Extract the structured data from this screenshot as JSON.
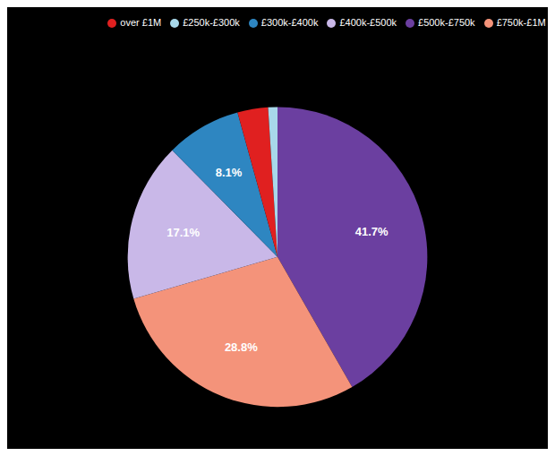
{
  "chart_data": {
    "type": "pie",
    "categories": [
      "£500k-£750k",
      "£750k-£1M",
      "£400k-£500k",
      "£300k-£400k",
      "over £1M",
      "£250k-£300k"
    ],
    "values": [
      41.7,
      28.8,
      17.1,
      8.1,
      3.3,
      1.0
    ],
    "value_labels": [
      "41.7%",
      "28.8%",
      "17.1%",
      "8.1%",
      null,
      null
    ],
    "colors": [
      "#6b3fa0",
      "#f4937a",
      "#c9b8e8",
      "#2e86c1",
      "#e02020",
      "#a8d8ea"
    ],
    "data_labels": true,
    "legend": "top"
  }
}
